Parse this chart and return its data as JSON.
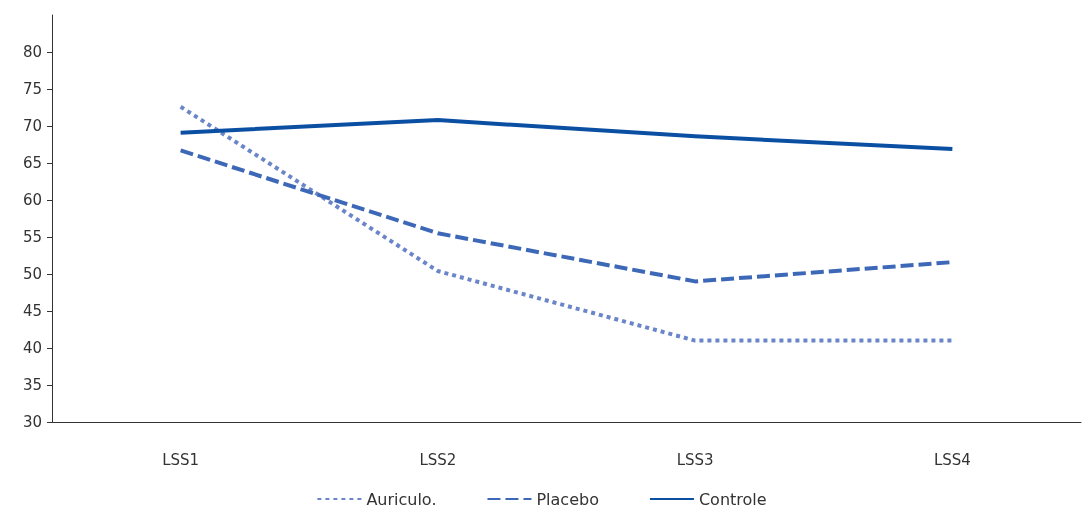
{
  "chart_data": {
    "type": "line",
    "categories": [
      "LSS1",
      "LSS2",
      "LSS3",
      "LSS4"
    ],
    "series": [
      {
        "name": "Auriculo.",
        "color": "#6a85c8",
        "line_style": "dotted",
        "values": [
          72.6,
          50.4,
          41,
          41
        ]
      },
      {
        "name": "Placebo",
        "color": "#3d68b8",
        "line_style": "dashed",
        "values": [
          66.7,
          55.5,
          49,
          51.6
        ]
      },
      {
        "name": "Controle",
        "color": "#0b4fa3",
        "line_style": "solid",
        "values": [
          69.1,
          70.8,
          68.6,
          66.9
        ]
      }
    ],
    "ylim": [
      30,
      85
    ],
    "yticks": [
      30,
      35,
      40,
      45,
      50,
      55,
      60,
      65,
      70,
      75,
      80
    ],
    "grid": false,
    "legend": "bottom",
    "marker": "none"
  }
}
